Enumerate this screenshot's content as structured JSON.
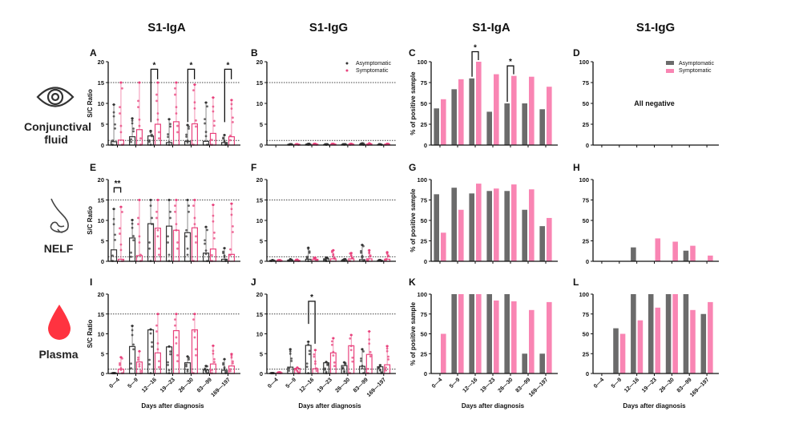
{
  "column_titles": [
    "S1-IgA",
    "S1-IgG",
    "S1-IgA",
    "S1-IgG"
  ],
  "row_labels": [
    {
      "label": "Conjunctival fluid",
      "icon": "eye-icon"
    },
    {
      "label": "NELF",
      "icon": "nose-icon"
    },
    {
      "label": "Plasma",
      "icon": "blood-drop-icon"
    }
  ],
  "colors": {
    "asymptomatic": "#333333",
    "symptomatic": "#e8417c",
    "asym_bar": "#6b6b6b",
    "sym_bar": "#f985b3",
    "blood": "#ff3340"
  },
  "legend": {
    "asymptomatic": "Asymptomatic",
    "symptomatic": "Symptomatic"
  },
  "chart_data": [
    {
      "panel": "A",
      "type": "bar",
      "title": "",
      "ylabel": "S/C Ratio",
      "xlabel": "",
      "ylim": [
        0,
        20
      ],
      "yticks": [
        0,
        5,
        10,
        15,
        20
      ],
      "ref_lines": [
        15,
        1.1
      ],
      "categories": [
        "0—4",
        "5—9",
        "12—16",
        "19—23",
        "26—30",
        "83—99",
        "169—197"
      ],
      "series": [
        {
          "name": "Asymptomatic",
          "values": [
            0.8,
            2.0,
            2.2,
            0.6,
            0.9,
            0.9,
            0.6
          ],
          "max": [
            9.7,
            6.4,
            3.4,
            6.2,
            4.8,
            10.2,
            2.4
          ]
        },
        {
          "name": "Symptomatic",
          "values": [
            1.2,
            3.7,
            5.0,
            5.6,
            5.1,
            2.8,
            2.0
          ],
          "max": [
            15,
            15,
            15,
            15,
            14.5,
            11.4,
            10.8
          ]
        }
      ],
      "significance": [
        {
          "category": "12—16",
          "label": "*"
        },
        {
          "category": "26—30",
          "label": "*"
        },
        {
          "category": "169—197",
          "label": "*"
        }
      ]
    },
    {
      "panel": "B",
      "type": "bar",
      "ylabel": "",
      "xlabel": "",
      "ylim": [
        0,
        20
      ],
      "yticks": [
        0,
        5,
        10,
        15,
        20
      ],
      "ref_lines": [
        15,
        1.1
      ],
      "categories": [
        "0—4",
        "5—9",
        "12—16",
        "19—23",
        "26—30",
        "83—99",
        "169—197"
      ],
      "series": [
        {
          "name": "Asymptomatic",
          "values": [
            null,
            0.15,
            0.2,
            0.1,
            0.15,
            0.2,
            0.1
          ],
          "max": [
            null,
            0.2,
            0.3,
            0.2,
            0.2,
            0.4,
            0.2
          ]
        },
        {
          "name": "Symptomatic",
          "values": [
            null,
            0.15,
            0.2,
            0.2,
            0.2,
            0.25,
            0.2
          ],
          "max": [
            null,
            0.2,
            0.3,
            0.3,
            0.3,
            0.4,
            0.3
          ]
        }
      ],
      "legend": "top-right",
      "significance": []
    },
    {
      "panel": "C",
      "type": "bar",
      "ylabel": "% of positive sample",
      "xlabel": "",
      "ylim": [
        0,
        100
      ],
      "yticks": [
        0,
        25,
        50,
        75,
        100
      ],
      "categories": [
        "0—4",
        "5—9",
        "12—16",
        "19—23",
        "26—30",
        "83—99",
        "169—197"
      ],
      "series": [
        {
          "name": "Asymptomatic",
          "values": [
            44,
            67,
            80,
            40,
            50,
            50,
            43
          ]
        },
        {
          "name": "Symptomatic",
          "values": [
            55,
            79,
            100,
            85,
            83,
            82,
            70
          ]
        }
      ],
      "significance": [
        {
          "category": "12—16",
          "label": "*"
        },
        {
          "category": "26—30",
          "label": "*"
        }
      ]
    },
    {
      "panel": "D",
      "type": "bar",
      "ylabel": "",
      "xlabel": "",
      "ylim": [
        0,
        100
      ],
      "yticks": [
        0,
        25,
        50,
        75,
        100
      ],
      "categories": [
        "0—4",
        "5—9",
        "12—16",
        "19—23",
        "26—30",
        "83—99",
        "169—197"
      ],
      "series": [
        {
          "name": "Asymptomatic",
          "values": [
            0,
            0,
            0,
            0,
            0,
            0,
            0
          ]
        },
        {
          "name": "Symptomatic",
          "values": [
            0,
            0,
            0,
            0,
            0,
            0,
            0
          ]
        }
      ],
      "annotation": "All negative",
      "legend": "top-right",
      "significance": []
    },
    {
      "panel": "E",
      "type": "bar",
      "ylabel": "S/C Ratio",
      "xlabel": "",
      "ylim": [
        0,
        20
      ],
      "yticks": [
        0,
        5,
        10,
        15,
        20
      ],
      "ref_lines": [
        15,
        1.1
      ],
      "categories": [
        "0—4",
        "5—9",
        "12—16",
        "19—23",
        "26—30",
        "83—99",
        "169—197"
      ],
      "series": [
        {
          "name": "Asymptomatic",
          "values": [
            2.8,
            5.7,
            9.2,
            8.6,
            7.0,
            2.0,
            0.5
          ],
          "max": [
            12.8,
            10.1,
            15,
            15,
            15,
            8.4,
            3.2
          ]
        },
        {
          "name": "Symptomatic",
          "values": [
            0.5,
            1.4,
            8.1,
            7.6,
            8.2,
            3.0,
            1.7
          ],
          "max": [
            13.3,
            15,
            15,
            15,
            15,
            13.8,
            14.1
          ]
        }
      ],
      "significance": [
        {
          "category": "0—4",
          "label": "**"
        }
      ]
    },
    {
      "panel": "F",
      "type": "bar",
      "ylabel": "",
      "xlabel": "",
      "ylim": [
        0,
        20
      ],
      "yticks": [
        0,
        5,
        10,
        15,
        20
      ],
      "ref_lines": [
        15,
        1.1
      ],
      "categories": [
        "0—4",
        "5—9",
        "12—16",
        "19—23",
        "26—30",
        "83—99",
        "169—197"
      ],
      "series": [
        {
          "name": "Asymptomatic",
          "values": [
            0.2,
            0.3,
            0.5,
            0.6,
            0.3,
            0.4,
            0.2
          ],
          "max": [
            0.3,
            0.5,
            3.3,
            0.9,
            0.5,
            4.0,
            0.3
          ]
        },
        {
          "name": "Symptomatic",
          "values": [
            0.2,
            0.2,
            0.5,
            0.6,
            0.6,
            0.6,
            0.5
          ],
          "max": [
            0.3,
            0.4,
            0.9,
            2.7,
            2.0,
            2.7,
            2.2
          ]
        }
      ],
      "significance": []
    },
    {
      "panel": "G",
      "type": "bar",
      "ylabel": "% of positive sample",
      "xlabel": "",
      "ylim": [
        0,
        100
      ],
      "yticks": [
        0,
        25,
        50,
        75,
        100
      ],
      "categories": [
        "0—4",
        "5—9",
        "12—16",
        "19—23",
        "26—30",
        "83—99",
        "169—197"
      ],
      "series": [
        {
          "name": "Asymptomatic",
          "values": [
            82,
            90,
            83,
            86,
            86,
            63,
            43
          ]
        },
        {
          "name": "Symptomatic",
          "values": [
            35,
            63,
            95,
            89,
            94,
            88,
            53
          ]
        }
      ],
      "significance": []
    },
    {
      "panel": "H",
      "type": "bar",
      "ylabel": "",
      "xlabel": "",
      "ylim": [
        0,
        100
      ],
      "yticks": [
        0,
        25,
        50,
        75,
        100
      ],
      "categories": [
        "0—4",
        "5—9",
        "12—16",
        "19—23",
        "26—30",
        "83—99",
        "169—197"
      ],
      "series": [
        {
          "name": "Asymptomatic",
          "values": [
            0,
            0,
            17,
            0,
            0,
            13,
            0
          ]
        },
        {
          "name": "Symptomatic",
          "values": [
            0,
            0,
            0,
            28,
            24,
            19,
            7
          ]
        }
      ],
      "significance": []
    },
    {
      "panel": "I",
      "type": "bar",
      "ylabel": "S/C Ratio",
      "xlabel": "Days after diagnosis",
      "ylim": [
        0,
        20
      ],
      "yticks": [
        0,
        5,
        10,
        15,
        20
      ],
      "ref_lines": [
        15,
        1.1
      ],
      "categories": [
        "0—4",
        "5—9",
        "12—16",
        "19—23",
        "26—30",
        "83—99",
        "169—197"
      ],
      "series": [
        {
          "name": "Asymptomatic",
          "values": [
            0.1,
            6.8,
            11.0,
            6.7,
            2.7,
            0.9,
            0.8
          ],
          "max": [
            0.1,
            12.0,
            11.1,
            6.8,
            4.3,
            1.9,
            3.6
          ]
        },
        {
          "name": "Symptomatic",
          "values": [
            1.1,
            2.9,
            5.2,
            10.8,
            11.0,
            2.4,
            1.9
          ],
          "max": [
            4.1,
            5.6,
            15,
            15,
            15,
            7.0,
            4.9
          ]
        }
      ],
      "significance": []
    },
    {
      "panel": "J",
      "type": "bar",
      "ylabel": "",
      "xlabel": "Days after diagnosis",
      "ylim": [
        0,
        20
      ],
      "yticks": [
        0,
        5,
        10,
        15,
        20
      ],
      "ref_lines": [
        15,
        1.1
      ],
      "categories": [
        "0—4",
        "5—9",
        "12—16",
        "19—23",
        "26—30",
        "83—99",
        "169—197"
      ],
      "series": [
        {
          "name": "Asymptomatic",
          "values": [
            0.1,
            1.6,
            7.1,
            2.7,
            2.0,
            1.8,
            1.7
          ],
          "max": [
            0.1,
            6.1,
            8.0,
            2.9,
            2.8,
            6.1,
            2.1
          ]
        },
        {
          "name": "Symptomatic",
          "values": [
            0.2,
            1.3,
            1.2,
            5.2,
            7.0,
            4.8,
            2.2
          ],
          "max": [
            0.3,
            1.5,
            5.9,
            8.9,
            9.7,
            10.6,
            6.9
          ]
        }
      ],
      "significance": [
        {
          "category": "12—16",
          "label": "*"
        }
      ]
    },
    {
      "panel": "K",
      "type": "bar",
      "ylabel": "% of positive sample",
      "xlabel": "Days after diagnosis",
      "ylim": [
        0,
        100
      ],
      "yticks": [
        0,
        25,
        50,
        75,
        100
      ],
      "categories": [
        "0—4",
        "5—9",
        "12—16",
        "19—23",
        "26—30",
        "83—99",
        "169—197"
      ],
      "series": [
        {
          "name": "Asymptomatic",
          "values": [
            0,
            100,
            100,
            100,
            100,
            25,
            25
          ]
        },
        {
          "name": "Symptomatic",
          "values": [
            50,
            100,
            100,
            92,
            91,
            80,
            90
          ]
        }
      ],
      "significance": []
    },
    {
      "panel": "L",
      "type": "bar",
      "ylabel": "",
      "xlabel": "Days after diagnosis",
      "ylim": [
        0,
        100
      ],
      "yticks": [
        0,
        25,
        50,
        75,
        100
      ],
      "categories": [
        "0—4",
        "5—9",
        "12—16",
        "19—23",
        "26—30",
        "83—99",
        "169—197"
      ],
      "series": [
        {
          "name": "Asymptomatic",
          "values": [
            0,
            57,
            100,
            100,
            100,
            100,
            75
          ]
        },
        {
          "name": "Symptomatic",
          "values": [
            0,
            50,
            67,
            83,
            100,
            80,
            90
          ]
        }
      ],
      "significance": []
    }
  ]
}
